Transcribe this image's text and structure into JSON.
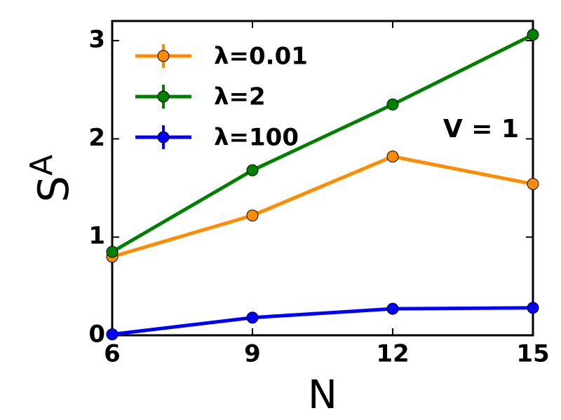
{
  "chart_data": {
    "type": "line",
    "x_label": "N",
    "y_label": "S",
    "y_label_subscript": "A",
    "annotation": "V = 1",
    "x": [
      6,
      9,
      12,
      15
    ],
    "series": [
      {
        "name": "λ=0.01",
        "color": "#ff8c00",
        "values": [
          0.8,
          1.22,
          1.82,
          1.54
        ]
      },
      {
        "name": "λ=2",
        "color": "#008000",
        "values": [
          0.85,
          1.68,
          2.35,
          3.06
        ]
      },
      {
        "name": "λ=100",
        "color": "#0000ff",
        "values": [
          0.01,
          0.18,
          0.27,
          0.28
        ]
      }
    ],
    "xlim": [
      6,
      15
    ],
    "xticks": [
      6,
      9,
      12,
      15
    ],
    "ylim": [
      0,
      3.2
    ],
    "yticks": [
      0,
      1,
      2,
      3
    ],
    "legend": "upper left"
  }
}
